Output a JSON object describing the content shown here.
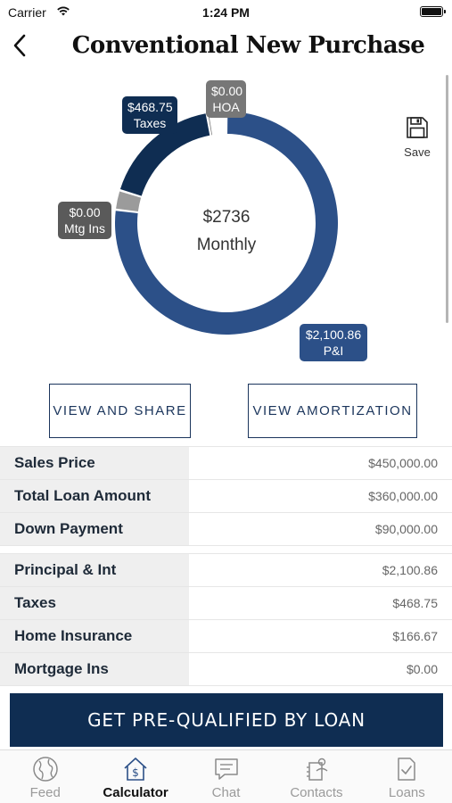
{
  "status_bar": {
    "carrier": "Carrier",
    "time": "1:24 PM"
  },
  "nav": {
    "title": "Conventional New Purchase",
    "back_icon": "chevron-left-icon"
  },
  "chart": {
    "center_amount": "$2736",
    "center_label": "Monthly",
    "save_label": "Save",
    "slices": [
      {
        "name": "P&I",
        "value": 2100.86,
        "color": "#2c5088",
        "label": "$2,100.86",
        "caption": "P&I"
      },
      {
        "name": "Mtg Ins",
        "value": 0,
        "color": "#9b9b9b",
        "label": "$0.00",
        "caption": "Mtg Ins"
      },
      {
        "name": "Taxes",
        "value": 468.75,
        "color": "#0f2d52",
        "label": "$468.75",
        "caption": "Taxes"
      },
      {
        "name": "HOA",
        "value": 0,
        "color": "#777777",
        "label": "$0.00",
        "caption": "HOA"
      }
    ]
  },
  "buttons": {
    "share": "VIEW AND SHARE",
    "amortization": "VIEW AMORTIZATION"
  },
  "loan_table": [
    {
      "label": "Sales Price",
      "value": "$450,000.00"
    },
    {
      "label": "Total Loan Amount",
      "value": "$360,000.00"
    },
    {
      "label": "Down Payment",
      "value": "$90,000.00"
    }
  ],
  "payment_table": [
    {
      "label": "Principal & Int",
      "value": "$2,100.86"
    },
    {
      "label": "Taxes",
      "value": "$468.75"
    },
    {
      "label": "Home Insurance",
      "value": "$166.67"
    },
    {
      "label": "Mortgage Ins",
      "value": "$0.00"
    }
  ],
  "cta": "GET PRE-QUALIFIED BY LOAN",
  "tabs": [
    {
      "label": "Feed",
      "icon": "globe-icon"
    },
    {
      "label": "Calculator",
      "icon": "calculator-house-icon",
      "active": true
    },
    {
      "label": "Chat",
      "icon": "chat-icon"
    },
    {
      "label": "Contacts",
      "icon": "contacts-icon"
    },
    {
      "label": "Loans",
      "icon": "loans-icon"
    }
  ],
  "colors": {
    "navy": "#0f2d52",
    "blue": "#2c5088",
    "grey": "#9b9b9b"
  }
}
